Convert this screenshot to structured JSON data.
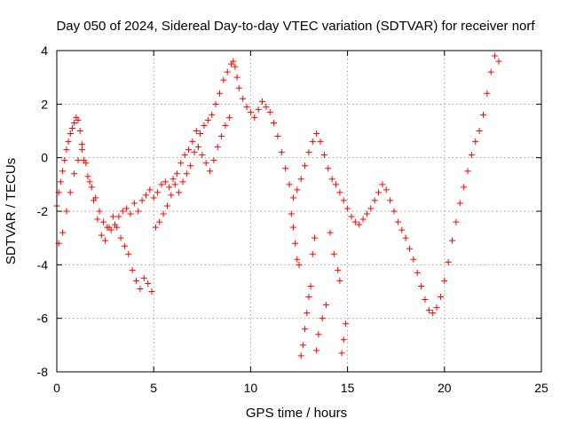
{
  "chart_data": {
    "type": "scatter",
    "title": "Day 050 of 2024, Sidereal Day-to-day VTEC variation (SDTVAR) for receiver norf",
    "xlabel": "GPS time / hours",
    "ylabel": "SDTVAR / TECUs",
    "xlim": [
      0,
      25
    ],
    "ylim": [
      -8,
      4
    ],
    "xticks": [
      0,
      5,
      10,
      15,
      20,
      25
    ],
    "yticks": [
      -8,
      -6,
      -4,
      -2,
      0,
      2,
      4
    ],
    "grid": true,
    "marker": "+",
    "color": "#ff0000",
    "series": [
      {
        "name": "sdtvar-main-trace",
        "x": [
          0.0,
          0.1,
          0.2,
          0.3,
          0.4,
          0.5,
          0.6,
          0.7,
          0.8,
          0.9,
          1.0,
          1.1,
          1.2,
          1.3,
          1.4,
          1.6,
          1.8,
          2.0,
          2.2,
          2.4,
          2.6,
          2.8,
          3.0,
          3.2,
          3.4,
          3.6,
          3.8,
          4.0,
          4.2,
          4.4,
          4.6,
          4.8,
          5.0,
          5.2,
          5.4,
          5.6,
          5.8,
          6.0,
          6.2,
          6.4,
          6.6,
          6.8,
          7.0,
          7.2,
          7.4,
          7.6,
          7.8,
          8.0,
          8.2,
          8.4,
          8.6,
          8.8,
          9.0,
          9.1,
          9.2,
          9.3,
          9.4,
          9.6,
          9.8,
          10.0,
          10.2,
          10.4,
          10.6,
          10.8,
          11.0,
          11.2,
          11.4,
          11.6,
          11.8,
          12.0,
          12.2,
          12.4,
          12.6,
          12.8,
          13.0,
          13.2,
          13.4,
          13.6,
          13.8,
          14.0,
          14.2,
          14.4,
          14.6,
          14.8,
          15.0,
          15.2,
          15.4,
          15.6,
          15.8,
          16.0,
          16.2,
          16.4,
          16.6,
          16.8,
          17.0,
          17.2,
          17.4,
          17.6,
          17.8,
          18.0,
          18.2,
          18.4,
          18.6,
          18.8,
          19.0,
          19.2,
          19.4,
          19.6,
          19.8,
          20.0,
          20.2,
          20.4,
          20.6,
          20.8,
          21.0,
          21.2,
          21.4,
          21.6,
          21.8,
          22.0,
          22.2,
          22.4,
          22.6,
          22.8
        ],
        "y": [
          -1.8,
          -1.3,
          -0.9,
          -0.5,
          -0.1,
          0.3,
          0.6,
          0.9,
          1.1,
          1.3,
          1.5,
          1.4,
          1.0,
          0.5,
          -0.1,
          -0.7,
          -1.1,
          -1.5,
          -2.0,
          -2.4,
          -2.6,
          -2.7,
          -2.5,
          -2.2,
          -2.0,
          -1.9,
          -2.1,
          -1.7,
          -2.0,
          -1.6,
          -1.4,
          -1.2,
          -1.5,
          -1.3,
          -1.0,
          -0.9,
          -1.1,
          -0.8,
          -0.6,
          -0.2,
          0.1,
          0.3,
          0.6,
          1.0,
          0.9,
          1.2,
          1.4,
          1.6,
          2.0,
          2.4,
          2.9,
          3.2,
          3.5,
          3.6,
          3.4,
          3.0,
          2.6,
          2.2,
          1.9,
          1.7,
          1.5,
          1.8,
          2.1,
          1.9,
          1.7,
          1.3,
          0.8,
          0.2,
          -0.4,
          -1.0,
          -1.5,
          -1.2,
          -0.8,
          -0.3,
          0.2,
          0.6,
          0.9,
          0.6,
          0.1,
          -0.4,
          -0.8,
          -1.0,
          -1.3,
          -1.6,
          -1.9,
          -2.2,
          -2.4,
          -2.5,
          -2.3,
          -2.1,
          -1.9,
          -1.6,
          -1.3,
          -1.0,
          -1.2,
          -1.6,
          -2.0,
          -2.4,
          -2.7,
          -3.0,
          -3.4,
          -3.8,
          -4.3,
          -4.8,
          -5.3,
          -5.7,
          -5.8,
          -5.6,
          -5.2,
          -4.6,
          -3.9,
          -3.1,
          -2.4,
          -1.7,
          -1.1,
          -0.5,
          0.1,
          0.6,
          1.0,
          1.6,
          2.4,
          3.2,
          3.8,
          3.6
        ]
      },
      {
        "name": "sdtvar-lower-branch",
        "x": [
          0.1,
          0.3,
          0.5,
          0.7,
          0.9,
          1.1,
          1.3,
          1.5,
          1.7,
          1.9,
          2.1,
          2.3,
          2.5,
          2.7,
          2.9,
          3.1,
          3.3,
          3.5,
          3.7,
          3.9,
          4.1,
          4.3,
          4.5,
          4.7,
          4.9,
          5.1,
          5.3,
          5.5,
          5.7,
          5.9,
          6.1,
          6.3,
          6.5,
          6.7,
          6.9,
          7.1,
          7.3,
          7.5,
          7.7,
          7.9,
          8.1,
          8.3,
          8.5,
          8.7,
          8.9
        ],
        "y": [
          -3.2,
          -2.8,
          -2.0,
          -1.3,
          -0.6,
          -0.1,
          0.3,
          -0.2,
          -0.9,
          -1.6,
          -2.3,
          -2.9,
          -3.1,
          -2.6,
          -2.2,
          -2.6,
          -3.0,
          -3.3,
          -3.6,
          -4.2,
          -4.6,
          -4.9,
          -4.5,
          -4.7,
          -5.0,
          -2.6,
          -2.4,
          -2.1,
          -1.8,
          -1.4,
          -1.0,
          -1.3,
          -0.9,
          -0.6,
          -0.3,
          0.2,
          0.4,
          0.1,
          -0.2,
          -0.5,
          -0.1,
          0.4,
          0.8,
          1.2,
          1.5
        ]
      },
      {
        "name": "sdtvar-dropouts",
        "x": [
          12.1,
          12.2,
          12.3,
          12.4,
          12.5,
          12.6,
          12.7,
          12.8,
          12.9,
          13.0,
          13.1,
          13.2,
          13.3,
          13.4,
          13.5,
          13.7,
          13.9,
          14.1,
          14.3,
          14.5,
          14.6,
          14.7,
          14.8,
          14.9
        ],
        "y": [
          -2.1,
          -2.6,
          -3.2,
          -3.8,
          -4.0,
          -7.4,
          -7.0,
          -6.4,
          -5.8,
          -5.2,
          -4.8,
          -3.6,
          -3.0,
          -7.2,
          -6.6,
          -6.0,
          -5.5,
          -2.8,
          -3.6,
          -4.2,
          -4.6,
          -7.3,
          -6.8,
          -6.2
        ]
      }
    ]
  }
}
